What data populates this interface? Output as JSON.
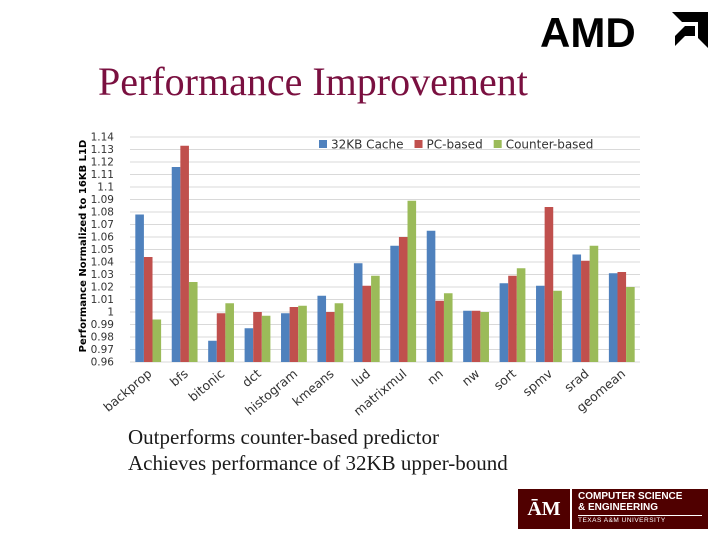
{
  "slide": {
    "title": "Performance Improvement",
    "bullets": [
      "Outperforms counter-based predictor",
      "Achieves performance of 32KB upper-bound"
    ]
  },
  "logos": {
    "amd": "AMD",
    "tamu": {
      "mark": "ĀM",
      "line1": "COMPUTER SCIENCE",
      "line2": "& ENGINEERING",
      "line3": "TEXAS A&M UNIVERSITY"
    }
  },
  "colors": {
    "title": "#7a1040",
    "series": [
      "#4f81bd",
      "#c0504d",
      "#9bbb59"
    ],
    "grid": "#d9d9d9"
  },
  "chart_data": {
    "type": "bar",
    "ylabel": "Performance Normalized to 16KB L1D",
    "ylim": [
      0.96,
      1.14
    ],
    "ytick_step": 0.01,
    "legend_position": "top-right",
    "grid": true,
    "categories": [
      "backprop",
      "bfs",
      "bitonic",
      "dct",
      "histogram",
      "kmeans",
      "lud",
      "matrixmul",
      "nn",
      "nw",
      "sort",
      "spmv",
      "srad",
      "geomean"
    ],
    "series": [
      {
        "name": "32KB Cache",
        "values": [
          1.078,
          1.116,
          0.977,
          0.987,
          0.999,
          1.013,
          1.039,
          1.053,
          1.065,
          1.001,
          1.023,
          1.021,
          1.046,
          1.031
        ]
      },
      {
        "name": "PC-based",
        "values": [
          1.044,
          1.133,
          0.999,
          1.0,
          1.004,
          1.0,
          1.021,
          1.06,
          1.009,
          1.001,
          1.029,
          1.084,
          1.041,
          1.032
        ]
      },
      {
        "name": "Counter-based",
        "values": [
          0.994,
          1.024,
          1.007,
          0.997,
          1.005,
          1.007,
          1.029,
          1.089,
          1.015,
          1.0,
          1.035,
          1.017,
          1.053,
          1.02
        ]
      }
    ]
  }
}
